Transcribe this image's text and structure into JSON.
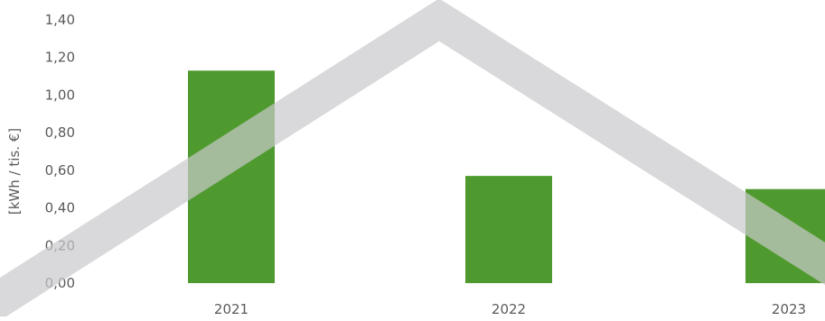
{
  "chart_data": {
    "type": "bar",
    "categories": [
      "2021",
      "2022",
      "2023"
    ],
    "values": [
      1.13,
      0.57,
      0.5
    ],
    "ylabel": "[kWh / tis. €]",
    "ylim": [
      0,
      1.4
    ],
    "yticks": [
      "0,00",
      "0,20",
      "0,40",
      "0,60",
      "0,80",
      "1,00",
      "1,20",
      "1,40"
    ],
    "grid": false,
    "bar_color": "#4f9a2e",
    "watermark_color": "#cfcfd2"
  }
}
